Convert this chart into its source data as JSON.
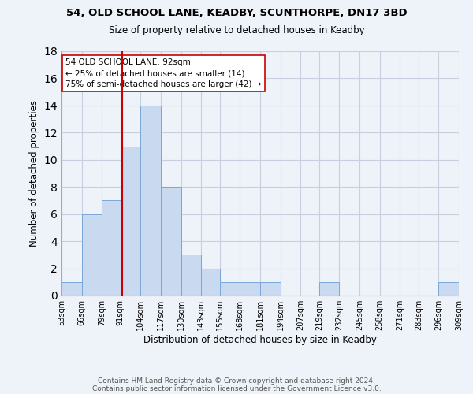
{
  "title": "54, OLD SCHOOL LANE, KEADBY, SCUNTHORPE, DN17 3BD",
  "subtitle": "Size of property relative to detached houses in Keadby",
  "xlabel": "Distribution of detached houses by size in Keadby",
  "ylabel": "Number of detached properties",
  "bin_edges": [
    53,
    66,
    79,
    91,
    104,
    117,
    130,
    143,
    155,
    168,
    181,
    194,
    207,
    219,
    232,
    245,
    258,
    271,
    283,
    296,
    309
  ],
  "bin_labels": [
    "53sqm",
    "66sqm",
    "79sqm",
    "91sqm",
    "104sqm",
    "117sqm",
    "130sqm",
    "143sqm",
    "155sqm",
    "168sqm",
    "181sqm",
    "194sqm",
    "207sqm",
    "219sqm",
    "232sqm",
    "245sqm",
    "258sqm",
    "271sqm",
    "283sqm",
    "296sqm",
    "309sqm"
  ],
  "counts": [
    1,
    6,
    7,
    11,
    14,
    8,
    3,
    2,
    1,
    1,
    1,
    0,
    0,
    1,
    0,
    0,
    0,
    0,
    0,
    1
  ],
  "bar_color": "#c9d9f0",
  "bar_edge_color": "#7aa8d8",
  "property_size": 92,
  "vline_color": "#cc0000",
  "annotation_line1": "54 OLD SCHOOL LANE: 92sqm",
  "annotation_line2": "← 25% of detached houses are smaller (14)",
  "annotation_line3": "75% of semi-detached houses are larger (42) →",
  "annotation_box_color": "#ffffff",
  "annotation_box_edge": "#cc0000",
  "ylim": [
    0,
    18
  ],
  "yticks": [
    0,
    2,
    4,
    6,
    8,
    10,
    12,
    14,
    16,
    18
  ],
  "footer_line1": "Contains HM Land Registry data © Crown copyright and database right 2024.",
  "footer_line2": "Contains public sector information licensed under the Government Licence v3.0.",
  "bg_color": "#eef2f9",
  "grid_color": "#c8d0e0"
}
